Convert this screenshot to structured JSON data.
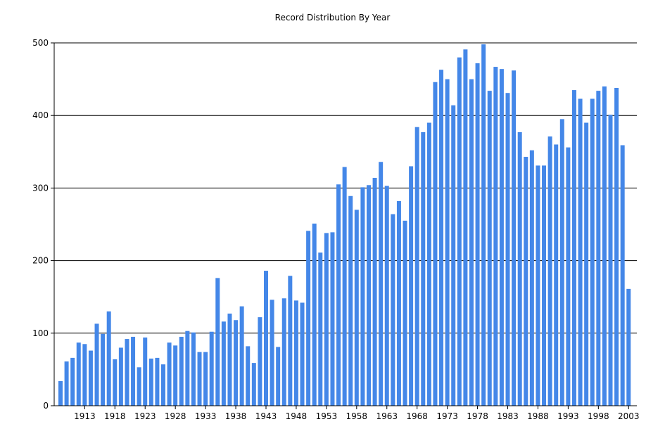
{
  "chart_data": {
    "type": "bar",
    "title": "Record Distribution By Year",
    "xlabel": "",
    "ylabel": "",
    "ylim": [
      0,
      500
    ],
    "yticks": [
      0,
      100,
      200,
      300,
      400,
      500
    ],
    "grid": true,
    "bar_color": "#4487e8",
    "x_tick_labels": [
      "1913",
      "1918",
      "1923",
      "1928",
      "1933",
      "1938",
      "1943",
      "1948",
      "1953",
      "1958",
      "1963",
      "1968",
      "1973",
      "1978",
      "1983",
      "1988",
      "1993",
      "1998",
      "2003"
    ],
    "categories": [
      1909,
      1910,
      1911,
      1912,
      1913,
      1914,
      1915,
      1916,
      1917,
      1918,
      1919,
      1920,
      1921,
      1922,
      1923,
      1924,
      1925,
      1926,
      1927,
      1928,
      1929,
      1930,
      1931,
      1932,
      1933,
      1934,
      1935,
      1936,
      1937,
      1938,
      1939,
      1940,
      1941,
      1942,
      1943,
      1944,
      1945,
      1946,
      1947,
      1948,
      1949,
      1950,
      1951,
      1952,
      1953,
      1954,
      1955,
      1956,
      1957,
      1958,
      1959,
      1960,
      1961,
      1962,
      1963,
      1964,
      1965,
      1966,
      1967,
      1968,
      1969,
      1970,
      1971,
      1972,
      1973,
      1974,
      1975,
      1976,
      1977,
      1978,
      1979,
      1980,
      1981,
      1982,
      1983,
      1984,
      1985,
      1986,
      1987,
      1988,
      1989,
      1990,
      1991,
      1992,
      1993,
      1994,
      1995,
      1996,
      1997,
      1998,
      1999,
      2000,
      2001,
      2002,
      2003
    ],
    "values": [
      34,
      61,
      66,
      87,
      85,
      76,
      113,
      99,
      130,
      64,
      80,
      92,
      95,
      53,
      94,
      65,
      66,
      57,
      87,
      83,
      95,
      103,
      101,
      74,
      74,
      102,
      176,
      116,
      127,
      118,
      137,
      82,
      59,
      122,
      186,
      146,
      81,
      148,
      179,
      145,
      142,
      241,
      251,
      211,
      238,
      239,
      305,
      329,
      289,
      270,
      301,
      304,
      314,
      336,
      303,
      264,
      282,
      255,
      330,
      384,
      377,
      390,
      446,
      463,
      450,
      414,
      480,
      491,
      450,
      472,
      498,
      434,
      467,
      464,
      431,
      462,
      377,
      343,
      352,
      331,
      331,
      371,
      360,
      395,
      356,
      435,
      423,
      390,
      423,
      434,
      440,
      401,
      438,
      359,
      161
    ]
  }
}
